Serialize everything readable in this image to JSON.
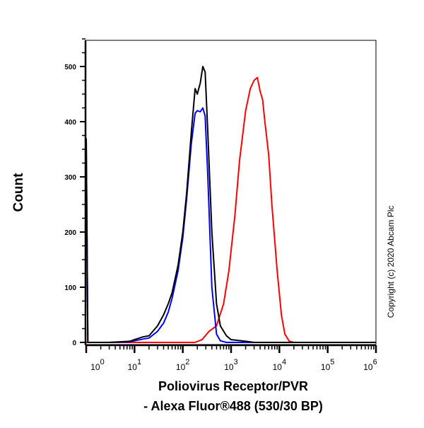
{
  "chart_data": {
    "type": "line",
    "title": "",
    "xlabel_line1": "Poliovirus Receptor/PVR",
    "xlabel_line2": "- Alexa Fluor®488 (530/30 BP)",
    "ylabel": "Count",
    "x_scale": "log",
    "xlim": [
      1,
      1000000
    ],
    "ylim": [
      0,
      550
    ],
    "x_tick_labels": [
      {
        "base": "10",
        "exp": "0",
        "value": 1
      },
      {
        "base": "10",
        "exp": "1",
        "value": 10
      },
      {
        "base": "10",
        "exp": "2",
        "value": 100
      },
      {
        "base": "10",
        "exp": "3",
        "value": 1000
      },
      {
        "base": "10",
        "exp": "4",
        "value": 10000
      },
      {
        "base": "10",
        "exp": "5",
        "value": 100000
      },
      {
        "base": "10",
        "exp": "6",
        "value": 1000000
      }
    ],
    "y_ticks": [
      0,
      100,
      200,
      300,
      400,
      500
    ],
    "grid": false,
    "series": [
      {
        "color": "#000000",
        "x": [
          1,
          1.08,
          1.15,
          3,
          8,
          10,
          15,
          20,
          30,
          40,
          50,
          60,
          80,
          100,
          120,
          150,
          180,
          200,
          230,
          260,
          290,
          330,
          400,
          500,
          600,
          800,
          1000,
          2000,
          3000,
          1000000
        ],
        "y": [
          370,
          0,
          0,
          0,
          2,
          5,
          10,
          12,
          30,
          50,
          70,
          90,
          140,
          200,
          270,
          380,
          460,
          450,
          470,
          500,
          490,
          380,
          200,
          70,
          30,
          12,
          5,
          2,
          0,
          0
        ]
      },
      {
        "color": "#0000ff",
        "x": [
          1,
          1.08,
          1.15,
          3,
          8,
          10,
          15,
          20,
          30,
          40,
          50,
          60,
          80,
          100,
          120,
          150,
          180,
          200,
          230,
          260,
          290,
          330,
          400,
          500,
          600,
          800,
          1000,
          1000000
        ],
        "y": [
          370,
          0,
          0,
          0,
          1,
          3,
          6,
          8,
          20,
          35,
          55,
          80,
          130,
          190,
          260,
          360,
          415,
          420,
          418,
          425,
          410,
          300,
          100,
          15,
          3,
          0,
          0,
          0
        ]
      },
      {
        "color": "#ff0000",
        "x": [
          1,
          180,
          250,
          350,
          500,
          700,
          900,
          1200,
          1500,
          2000,
          2500,
          3000,
          3500,
          4000,
          4500,
          5000,
          6000,
          7000,
          9000,
          11000,
          13000,
          16000,
          20000,
          1000000
        ],
        "y": [
          0,
          0,
          5,
          20,
          30,
          70,
          130,
          230,
          330,
          420,
          460,
          475,
          480,
          455,
          440,
          400,
          340,
          250,
          130,
          50,
          15,
          2,
          0,
          0
        ]
      }
    ]
  },
  "copyright": "Copyright (c) 2020 Abcam Plc",
  "colors": {
    "axis": "#000000",
    "black_series": "#000000",
    "blue_series": "#0000ff",
    "red_series": "#ff0000"
  }
}
